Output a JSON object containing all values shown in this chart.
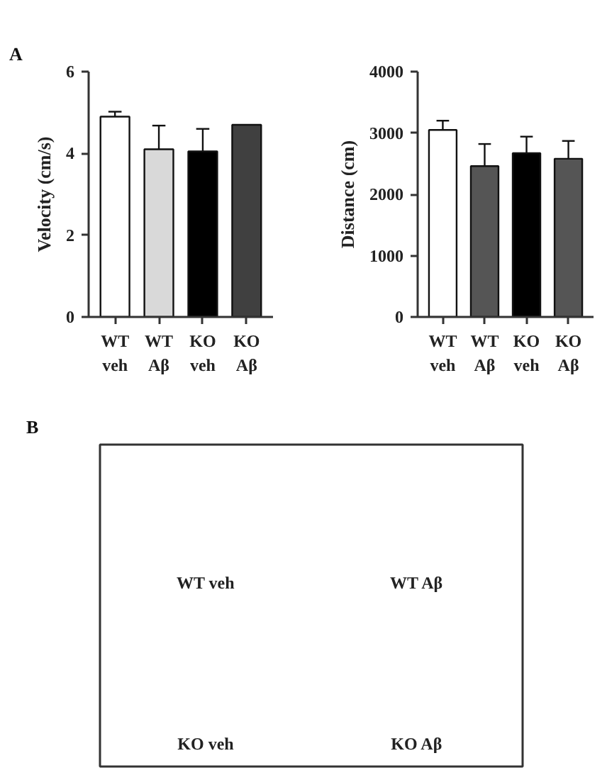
{
  "chart_data": [
    {
      "type": "bar",
      "title": "A",
      "ylabel": "Velocity (cm/s)",
      "categories": [
        "WT veh",
        "WT Aβ",
        "KO veh",
        "KO Aβ"
      ],
      "values": [
        4.9,
        4.1,
        4.05,
        4.7
      ],
      "errors": [
        0.12,
        0.58,
        0.55,
        null
      ],
      "colors": [
        "#ffffff",
        "#d9d9d9",
        "#000000",
        "#404040"
      ],
      "ylim": [
        0,
        6
      ],
      "yticks": [
        0,
        2,
        4,
        6
      ]
    },
    {
      "type": "bar",
      "ylabel": "Distance (cm)",
      "categories": [
        "WT veh",
        "WT Aβ",
        "KO veh",
        "KO Aβ"
      ],
      "values": [
        3050,
        2460,
        2670,
        2580
      ],
      "errors": [
        150,
        360,
        270,
        290
      ],
      "colors": [
        "#ffffff",
        "#555555",
        "#000000",
        "#555555"
      ],
      "ylim": [
        0,
        4000
      ],
      "yticks": [
        0,
        1000,
        2000,
        3000,
        4000
      ]
    },
    {
      "type": "other",
      "title": "B",
      "annotations": [
        "WT veh",
        "WT Aβ",
        "KO veh",
        "KO Aβ"
      ]
    }
  ]
}
